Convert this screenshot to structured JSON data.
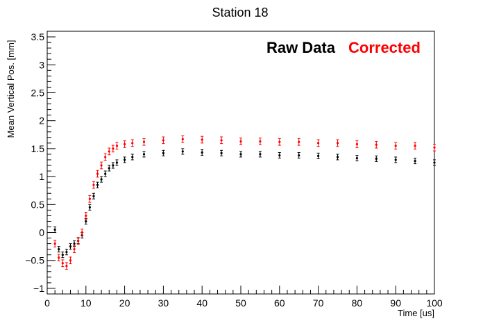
{
  "chart_data": {
    "type": "scatter",
    "title": "Station 18",
    "xlabel": "Time [us]",
    "ylabel": "Mean Vertical Pos. [mm]",
    "xlim": [
      0,
      100
    ],
    "ylim": [
      -1.1,
      3.6
    ],
    "x_ticks": [
      0,
      10,
      20,
      30,
      40,
      50,
      60,
      70,
      80,
      90,
      100
    ],
    "x_tick_labels": [
      "0",
      "10",
      "20",
      "30",
      "40",
      "50",
      "60",
      "70",
      "80",
      "90",
      "100"
    ],
    "y_ticks": [
      -1,
      -0.5,
      0,
      0.5,
      1,
      1.5,
      2,
      2.5,
      3,
      3.5
    ],
    "y_tick_labels": [
      "−1",
      "−0.5",
      "0",
      "0.5",
      "1",
      "1.5",
      "2",
      "2.5",
      "3",
      "3.5"
    ],
    "grid": false,
    "legend_position": "top-right",
    "series": [
      {
        "name": "Raw Data",
        "color": "#000000",
        "x": [
          2,
          3,
          4,
          5,
          6,
          7,
          8,
          9,
          10,
          11,
          12,
          13,
          14,
          15,
          16,
          17,
          18,
          20,
          22,
          25,
          30,
          35,
          40,
          45,
          50,
          55,
          60,
          65,
          70,
          75,
          80,
          85,
          90,
          95,
          100
        ],
        "y": [
          0.05,
          -0.3,
          -0.4,
          -0.35,
          -0.25,
          -0.2,
          -0.15,
          -0.05,
          0.2,
          0.45,
          0.65,
          0.85,
          0.95,
          1.05,
          1.15,
          1.2,
          1.25,
          1.3,
          1.35,
          1.4,
          1.42,
          1.45,
          1.43,
          1.42,
          1.4,
          1.4,
          1.38,
          1.38,
          1.37,
          1.35,
          1.33,
          1.32,
          1.3,
          1.28,
          1.25
        ],
        "error": 0.05
      },
      {
        "name": "Corrected",
        "color": "#ff0000",
        "x": [
          2,
          3,
          4,
          5,
          6,
          7,
          8,
          9,
          10,
          11,
          12,
          13,
          14,
          15,
          16,
          17,
          18,
          20,
          22,
          25,
          30,
          35,
          40,
          45,
          50,
          55,
          60,
          65,
          70,
          75,
          80,
          85,
          90,
          95,
          100
        ],
        "y": [
          -0.2,
          -0.45,
          -0.55,
          -0.6,
          -0.5,
          -0.3,
          -0.15,
          0.0,
          0.3,
          0.6,
          0.85,
          1.05,
          1.2,
          1.35,
          1.45,
          1.5,
          1.55,
          1.58,
          1.6,
          1.62,
          1.65,
          1.67,
          1.66,
          1.65,
          1.63,
          1.63,
          1.62,
          1.62,
          1.6,
          1.6,
          1.58,
          1.57,
          1.55,
          1.55,
          1.52
        ],
        "error": 0.06
      }
    ]
  }
}
